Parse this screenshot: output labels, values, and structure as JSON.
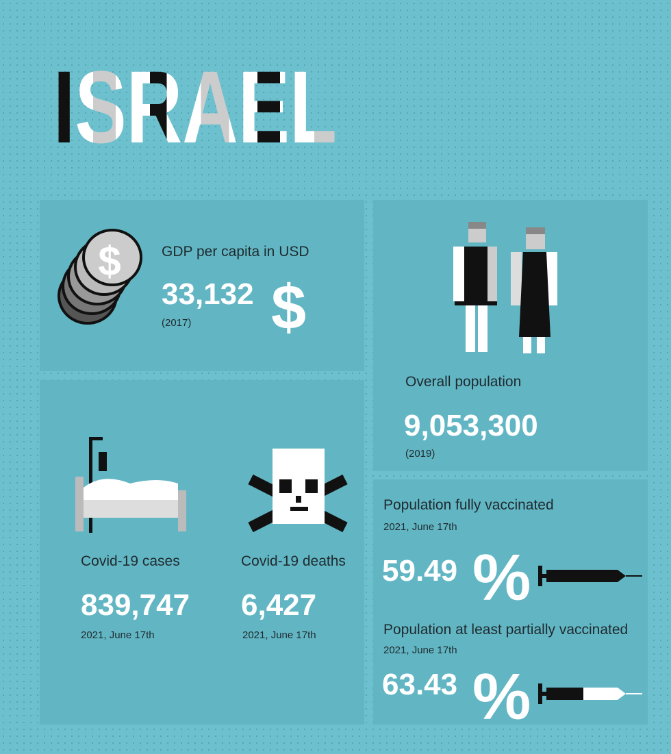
{
  "title": "ISRAEL",
  "gdp": {
    "label": "GDP per capita in USD",
    "value": "33,132",
    "symbol": "$",
    "year": "(2017)"
  },
  "population": {
    "label": "Overall population",
    "value": "9,053,300",
    "year": "(2019)"
  },
  "cases": {
    "label": "Covid-19 cases",
    "value": "839,747",
    "date": "2021, June 17th"
  },
  "deaths": {
    "label": "Covid-19 deaths",
    "value": "6,427",
    "date": "2021, June 17th"
  },
  "vaccination": [
    {
      "label": "Population fully vaccinated",
      "date": "2021, June 17th",
      "value": "59.49",
      "symbol": "%"
    },
    {
      "label": "Population at least partially vaccinated",
      "date": "2021, June 17th",
      "value": "63.43",
      "symbol": "%"
    }
  ]
}
